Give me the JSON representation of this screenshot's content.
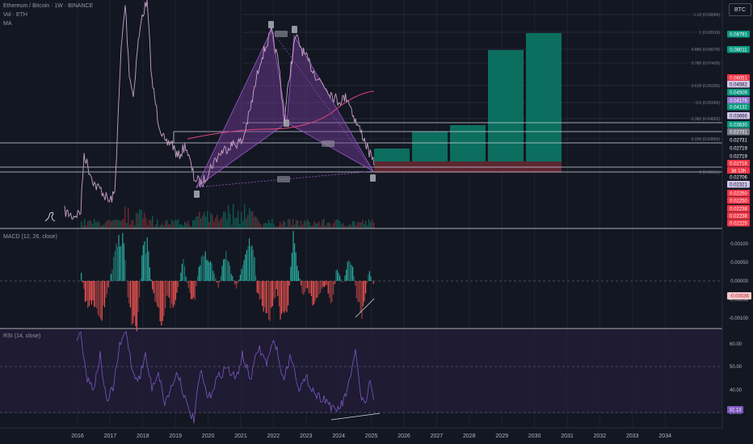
{
  "header": {
    "title": "Ethereum / Bitcoin · 1W · BINANCE",
    "vol": "Vol · ETH",
    "ma": "MA"
  },
  "currency_button": "BTC",
  "indicators": {
    "macd_title": "MACD (12, 26, close)",
    "rsi_title": "RSI (14, close)"
  },
  "main_scale": {
    "badges": [
      {
        "text": "0.08791",
        "color": "#089981"
      },
      {
        "text": "0.08011",
        "color": "#089981"
      },
      {
        "text": "0.06051",
        "color": "#f23645"
      },
      {
        "text": "0.04582",
        "color": "#d1c4e9"
      },
      {
        "text": "0.04509",
        "color": "#089981"
      },
      {
        "text": "0.04176",
        "color": "#9575cd"
      },
      {
        "text": "0.04132",
        "color": "#089981"
      },
      {
        "text": "0.03666",
        "color": "#d1c4e9"
      },
      {
        "text": "0.03630",
        "color": "#089981"
      },
      {
        "text": "0.02731",
        "color": "#787b86"
      },
      {
        "text": "0.02731",
        "color": "#131722"
      },
      {
        "text": "0.02719",
        "color": "#131722"
      },
      {
        "text": "0.02719",
        "color": "#131722"
      },
      {
        "text": "0.02716",
        "color": "#f23645"
      },
      {
        "text": "3d 13h",
        "color": "#f23645"
      },
      {
        "text": "0.02706",
        "color": "#131722"
      },
      {
        "text": "0.02321",
        "color": "#d1c4e9"
      },
      {
        "text": "0.02250",
        "color": "#f23645"
      },
      {
        "text": "0.02250",
        "color": "#f23645"
      },
      {
        "text": "0.02238",
        "color": "#f23645"
      },
      {
        "text": "0.02238",
        "color": "#f23645"
      },
      {
        "text": "0.02225",
        "color": "#f23645"
      }
    ],
    "fib_levels": [
      "1.13 (0.09684)",
      "1 (0.08919)",
      "0.886 (0.08078)",
      "0.786 (0.07426)",
      "0.618 (0.06336)",
      "0.5 (0.05569)",
      "0.382 (0.04802)",
      "0.236 (0.03850)",
      "0 (0.02315)"
    ]
  },
  "macd_scale": {
    "ticks": [
      "0.00100",
      "0.00050",
      "0.00000",
      "-0.00050",
      "-0.00100"
    ],
    "current": "-0.00036"
  },
  "rsi_scale": {
    "ticks": [
      "60.00",
      "50.00",
      "40.00",
      "30.00"
    ],
    "current": "32.13"
  },
  "time_axis": [
    "2016",
    "2017",
    "2018",
    "2019",
    "2020",
    "2021",
    "2022",
    "2023",
    "2024",
    "2025",
    "2026",
    "2027",
    "2028",
    "2029",
    "2030",
    "2031",
    "2032",
    "2033",
    "2034"
  ],
  "colors": {
    "background": "#131722",
    "price_line": "#c8a2c8",
    "harmonic_fill": "#7b3fa0",
    "projection_up": "#0b8a75",
    "projection_down": "#6b2a34",
    "macd_up": "#26a69a",
    "macd_down": "#ef5350",
    "rsi_line": "#7e57c2",
    "rsi_band": "#2a2546"
  }
}
